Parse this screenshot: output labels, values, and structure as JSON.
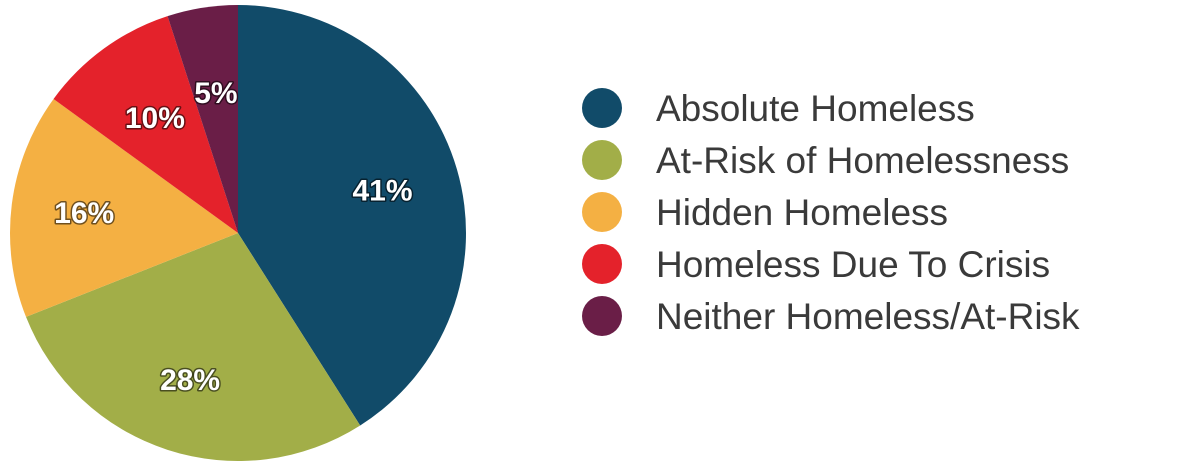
{
  "chart_data": {
    "type": "pie",
    "categories": [
      "Absolute Homeless",
      "At-Risk of Homelessness",
      "Hidden Homeless",
      "Homeless Due To Crisis",
      "Neither Homeless/At-Risk"
    ],
    "values": [
      41,
      28,
      16,
      10,
      5
    ],
    "labels": [
      "41%",
      "28%",
      "16%",
      "10%",
      "5%"
    ],
    "colors": [
      "#114B69",
      "#A2AE48",
      "#F4B043",
      "#E4222B",
      "#6A1E47"
    ],
    "legend_position": "right",
    "title": ""
  }
}
